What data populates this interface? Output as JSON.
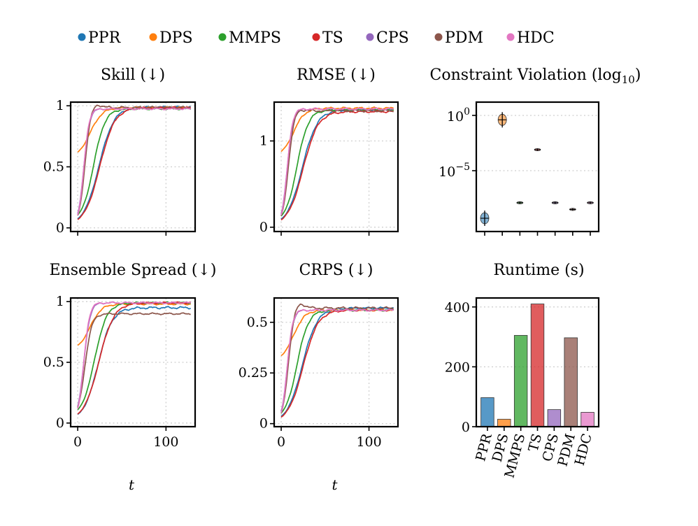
{
  "legend": [
    {
      "label": "PPR",
      "color": "#1f77b4"
    },
    {
      "label": "DPS",
      "color": "#ff7f0e"
    },
    {
      "label": "MMPS",
      "color": "#2ca02c"
    },
    {
      "label": "TS",
      "color": "#d62728"
    },
    {
      "label": "CPS",
      "color": "#9467bd"
    },
    {
      "label": "PDM",
      "color": "#8c564b"
    },
    {
      "label": "HDC",
      "color": "#e377c2"
    }
  ],
  "chart_data": [
    {
      "id": "skill",
      "type": "line",
      "title": "Skill (↓)",
      "xlabel": "",
      "xlim": [
        -8,
        133
      ],
      "ylim": [
        -0.03,
        1.03
      ],
      "xticks": [
        0,
        100
      ],
      "xtick_labels": [
        "",
        ""
      ],
      "yticks": [
        0,
        0.5,
        1
      ],
      "ytick_labels": [
        "0",
        "0.5",
        "1"
      ],
      "series": [
        {
          "name": "PPR",
          "color": "#1f77b4",
          "start": 0.02,
          "end": 0.99,
          "mid": 24,
          "width": 8.5,
          "overshoot": 0,
          "wobble": 0.006
        },
        {
          "name": "DPS",
          "color": "#ff7f0e",
          "start": 0.57,
          "end": 0.985,
          "mid": 14,
          "width": 7,
          "overshoot": 0,
          "wobble": 0.006
        },
        {
          "name": "MMPS",
          "color": "#2ca02c",
          "start": 0.05,
          "end": 0.975,
          "mid": 18,
          "width": 6.5,
          "overshoot": 0,
          "wobble": 0.006
        },
        {
          "name": "TS",
          "color": "#d62728",
          "start": 0.02,
          "end": 0.985,
          "mid": 25,
          "width": 8.5,
          "overshoot": 0,
          "wobble": 0.006
        },
        {
          "name": "CPS",
          "color": "#9467bd",
          "start": 0.02,
          "end": 0.975,
          "mid": 7,
          "width": 3.2,
          "overshoot": 0,
          "wobble": 0.006
        },
        {
          "name": "PDM",
          "color": "#8c564b",
          "start": 0.02,
          "end": 0.985,
          "mid": 8,
          "width": 3.3,
          "overshoot": 0.03,
          "wobble": 0.008
        },
        {
          "name": "HDC",
          "color": "#e377c2",
          "start": 0.02,
          "end": 0.975,
          "mid": 7,
          "width": 3.0,
          "overshoot": 0,
          "wobble": 0.006
        }
      ]
    },
    {
      "id": "rmse",
      "type": "line",
      "title": "RMSE (↓)",
      "xlabel": "",
      "xlim": [
        -8,
        133
      ],
      "ylim": [
        -0.05,
        1.45
      ],
      "xticks": [
        0,
        100
      ],
      "xtick_labels": [
        "",
        ""
      ],
      "yticks": [
        0,
        1
      ],
      "ytick_labels": [
        "0",
        "1"
      ],
      "series": [
        {
          "name": "PPR",
          "color": "#1f77b4",
          "start": 0.02,
          "end": 1.36,
          "mid": 24,
          "width": 8.5,
          "overshoot": 0,
          "wobble": 0.01
        },
        {
          "name": "DPS",
          "color": "#ff7f0e",
          "start": 0.82,
          "end": 1.38,
          "mid": 14,
          "width": 6.5,
          "overshoot": 0,
          "wobble": 0.01
        },
        {
          "name": "MMPS",
          "color": "#2ca02c",
          "start": 0.05,
          "end": 1.36,
          "mid": 18,
          "width": 6.5,
          "overshoot": 0,
          "wobble": 0.01
        },
        {
          "name": "TS",
          "color": "#d62728",
          "start": 0.02,
          "end": 1.34,
          "mid": 25,
          "width": 8.5,
          "overshoot": 0,
          "wobble": 0.01
        },
        {
          "name": "CPS",
          "color": "#9467bd",
          "start": 0.02,
          "end": 1.37,
          "mid": 7,
          "width": 3.2,
          "overshoot": 0,
          "wobble": 0.01
        },
        {
          "name": "PDM",
          "color": "#8c564b",
          "start": 0.02,
          "end": 1.35,
          "mid": 8,
          "width": 3.3,
          "overshoot": 0.02,
          "wobble": 0.012
        },
        {
          "name": "HDC",
          "color": "#e377c2",
          "start": 0.02,
          "end": 1.37,
          "mid": 7,
          "width": 3.0,
          "overshoot": 0,
          "wobble": 0.01
        }
      ]
    },
    {
      "id": "ensemble-spread",
      "type": "line",
      "title": "Ensemble Spread (↓)",
      "xlabel": "t",
      "xlim": [
        -8,
        133
      ],
      "ylim": [
        -0.03,
        1.03
      ],
      "xticks": [
        0,
        100
      ],
      "xtick_labels": [
        "0",
        "100"
      ],
      "yticks": [
        0,
        0.5,
        1
      ],
      "ytick_labels": [
        "0",
        "0.5",
        "1"
      ],
      "series": [
        {
          "name": "PPR",
          "color": "#1f77b4",
          "start": 0.02,
          "end": 0.95,
          "mid": 23,
          "width": 8,
          "overshoot": 0,
          "wobble": 0.008
        },
        {
          "name": "DPS",
          "color": "#ff7f0e",
          "start": 0.6,
          "end": 0.98,
          "mid": 14,
          "width": 6.5,
          "overshoot": 0,
          "wobble": 0.006
        },
        {
          "name": "MMPS",
          "color": "#2ca02c",
          "start": 0.05,
          "end": 0.99,
          "mid": 19,
          "width": 7,
          "overshoot": 0,
          "wobble": 0.006
        },
        {
          "name": "TS",
          "color": "#d62728",
          "start": 0.02,
          "end": 0.99,
          "mid": 24,
          "width": 8.5,
          "overshoot": 0,
          "wobble": 0.006
        },
        {
          "name": "CPS",
          "color": "#9467bd",
          "start": 0.02,
          "end": 0.99,
          "mid": 7,
          "width": 3.5,
          "overshoot": 0,
          "wobble": 0.006
        },
        {
          "name": "PDM",
          "color": "#8c564b",
          "start": 0.02,
          "end": 0.9,
          "mid": 8,
          "width": 4,
          "overshoot": 0,
          "wobble": 0.006
        },
        {
          "name": "HDC",
          "color": "#e377c2",
          "start": 0.02,
          "end": 0.99,
          "mid": 7,
          "width": 3.2,
          "overshoot": 0,
          "wobble": 0.006
        }
      ]
    },
    {
      "id": "crps",
      "type": "line",
      "title": "CRPS (↓)",
      "xlabel": "t",
      "xlim": [
        -8,
        133
      ],
      "ylim": [
        -0.015,
        0.62
      ],
      "xticks": [
        0,
        100
      ],
      "xtick_labels": [
        "0",
        "100"
      ],
      "yticks": [
        0,
        0.25,
        0.5
      ],
      "ytick_labels": [
        "0",
        "0.25",
        "0.5"
      ],
      "series": [
        {
          "name": "PPR",
          "color": "#1f77b4",
          "start": 0.005,
          "end": 0.57,
          "mid": 24,
          "width": 8.5,
          "overshoot": 0,
          "wobble": 0.004
        },
        {
          "name": "DPS",
          "color": "#ff7f0e",
          "start": 0.31,
          "end": 0.56,
          "mid": 14,
          "width": 6.5,
          "overshoot": 0,
          "wobble": 0.004
        },
        {
          "name": "MMPS",
          "color": "#2ca02c",
          "start": 0.02,
          "end": 0.56,
          "mid": 18,
          "width": 6.5,
          "overshoot": 0,
          "wobble": 0.004
        },
        {
          "name": "TS",
          "color": "#d62728",
          "start": 0.005,
          "end": 0.56,
          "mid": 25,
          "width": 8.5,
          "overshoot": 0,
          "wobble": 0.004
        },
        {
          "name": "CPS",
          "color": "#9467bd",
          "start": 0.005,
          "end": 0.56,
          "mid": 7,
          "width": 3.2,
          "overshoot": 0,
          "wobble": 0.004
        },
        {
          "name": "PDM",
          "color": "#8c564b",
          "start": 0.005,
          "end": 0.57,
          "mid": 8,
          "width": 3.3,
          "overshoot": 0.025,
          "wobble": 0.005
        },
        {
          "name": "HDC",
          "color": "#e377c2",
          "start": 0.005,
          "end": 0.56,
          "mid": 7,
          "width": 3.0,
          "overshoot": 0,
          "wobble": 0.004
        }
      ]
    },
    {
      "id": "constraint-violation",
      "type": "violin",
      "title": "Constraint Violation (log",
      "title_sub": "10",
      "title_close": ")",
      "yscale": "log",
      "ylim_log10": [
        -10.5,
        1.2
      ],
      "yticks_log10": [
        0,
        -5
      ],
      "ytick_labels": [
        {
          "base": "10",
          "exp": "0"
        },
        {
          "base": "10",
          "exp": "−5"
        }
      ],
      "categories": [
        "PPR",
        "DPS",
        "MMPS",
        "TS",
        "CPS",
        "PDM",
        "HDC"
      ],
      "log10_values": [
        -9.3,
        -0.4,
        -7.9,
        -3.1,
        -7.9,
        -8.5,
        -7.9
      ]
    },
    {
      "id": "runtime",
      "type": "bar",
      "title": "Runtime (s)",
      "ylim": [
        0,
        430
      ],
      "yticks": [
        0,
        200,
        400
      ],
      "ytick_labels": [
        "0",
        "200",
        "400"
      ],
      "categories": [
        "PPR",
        "DPS",
        "MMPS",
        "TS",
        "CPS",
        "PDM",
        "HDC"
      ],
      "values": [
        97,
        25,
        305,
        410,
        57,
        297,
        48
      ]
    }
  ]
}
